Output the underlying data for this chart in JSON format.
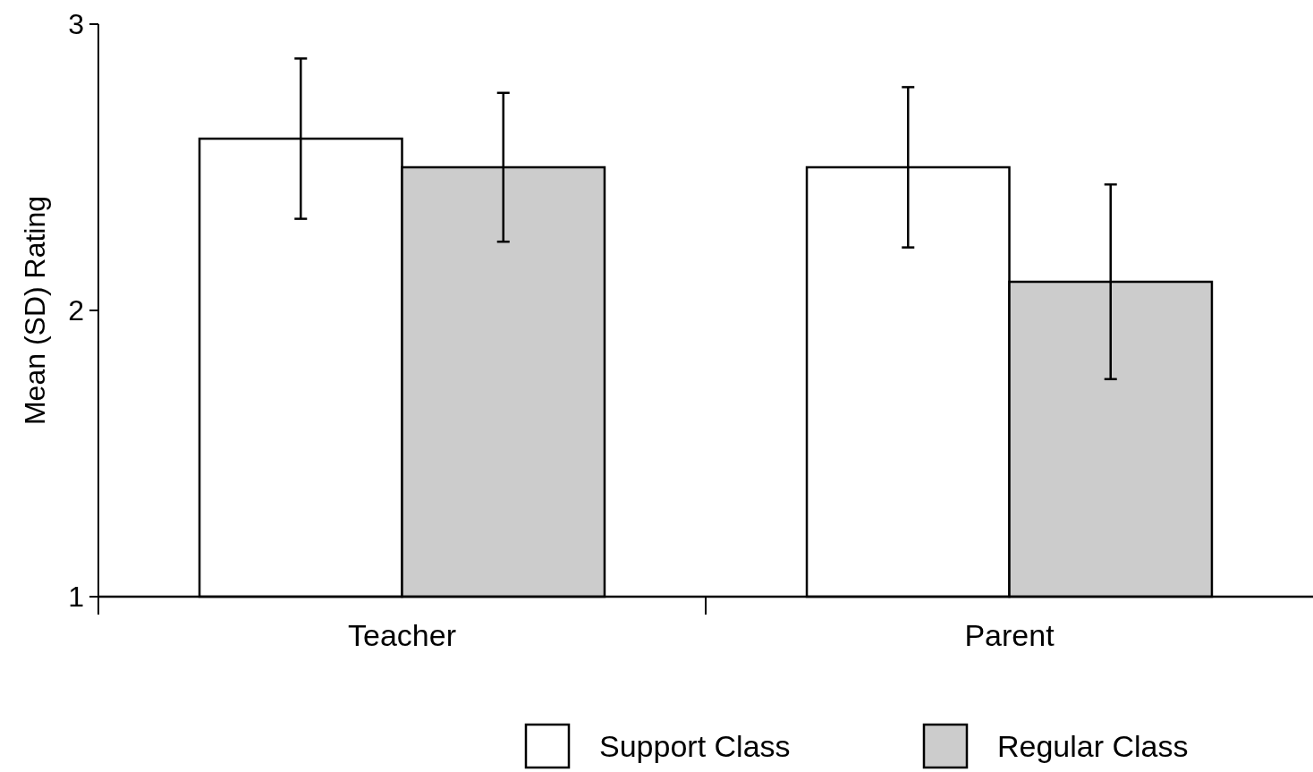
{
  "chart_data": {
    "type": "bar",
    "ylabel": "Mean (SD) Rating",
    "categories": [
      "Teacher",
      "Parent"
    ],
    "series": [
      {
        "name": "Support Class",
        "color": "#ffffff",
        "values": [
          2.6,
          2.5
        ],
        "errors": [
          0.28,
          0.28
        ]
      },
      {
        "name": "Regular Class",
        "color": "#cccccc",
        "values": [
          2.5,
          2.1
        ],
        "errors": [
          0.26,
          0.34
        ]
      }
    ],
    "ylim": [
      1,
      3
    ],
    "yticks": [
      1,
      2,
      3
    ],
    "grid": false,
    "legend": "bottom"
  }
}
